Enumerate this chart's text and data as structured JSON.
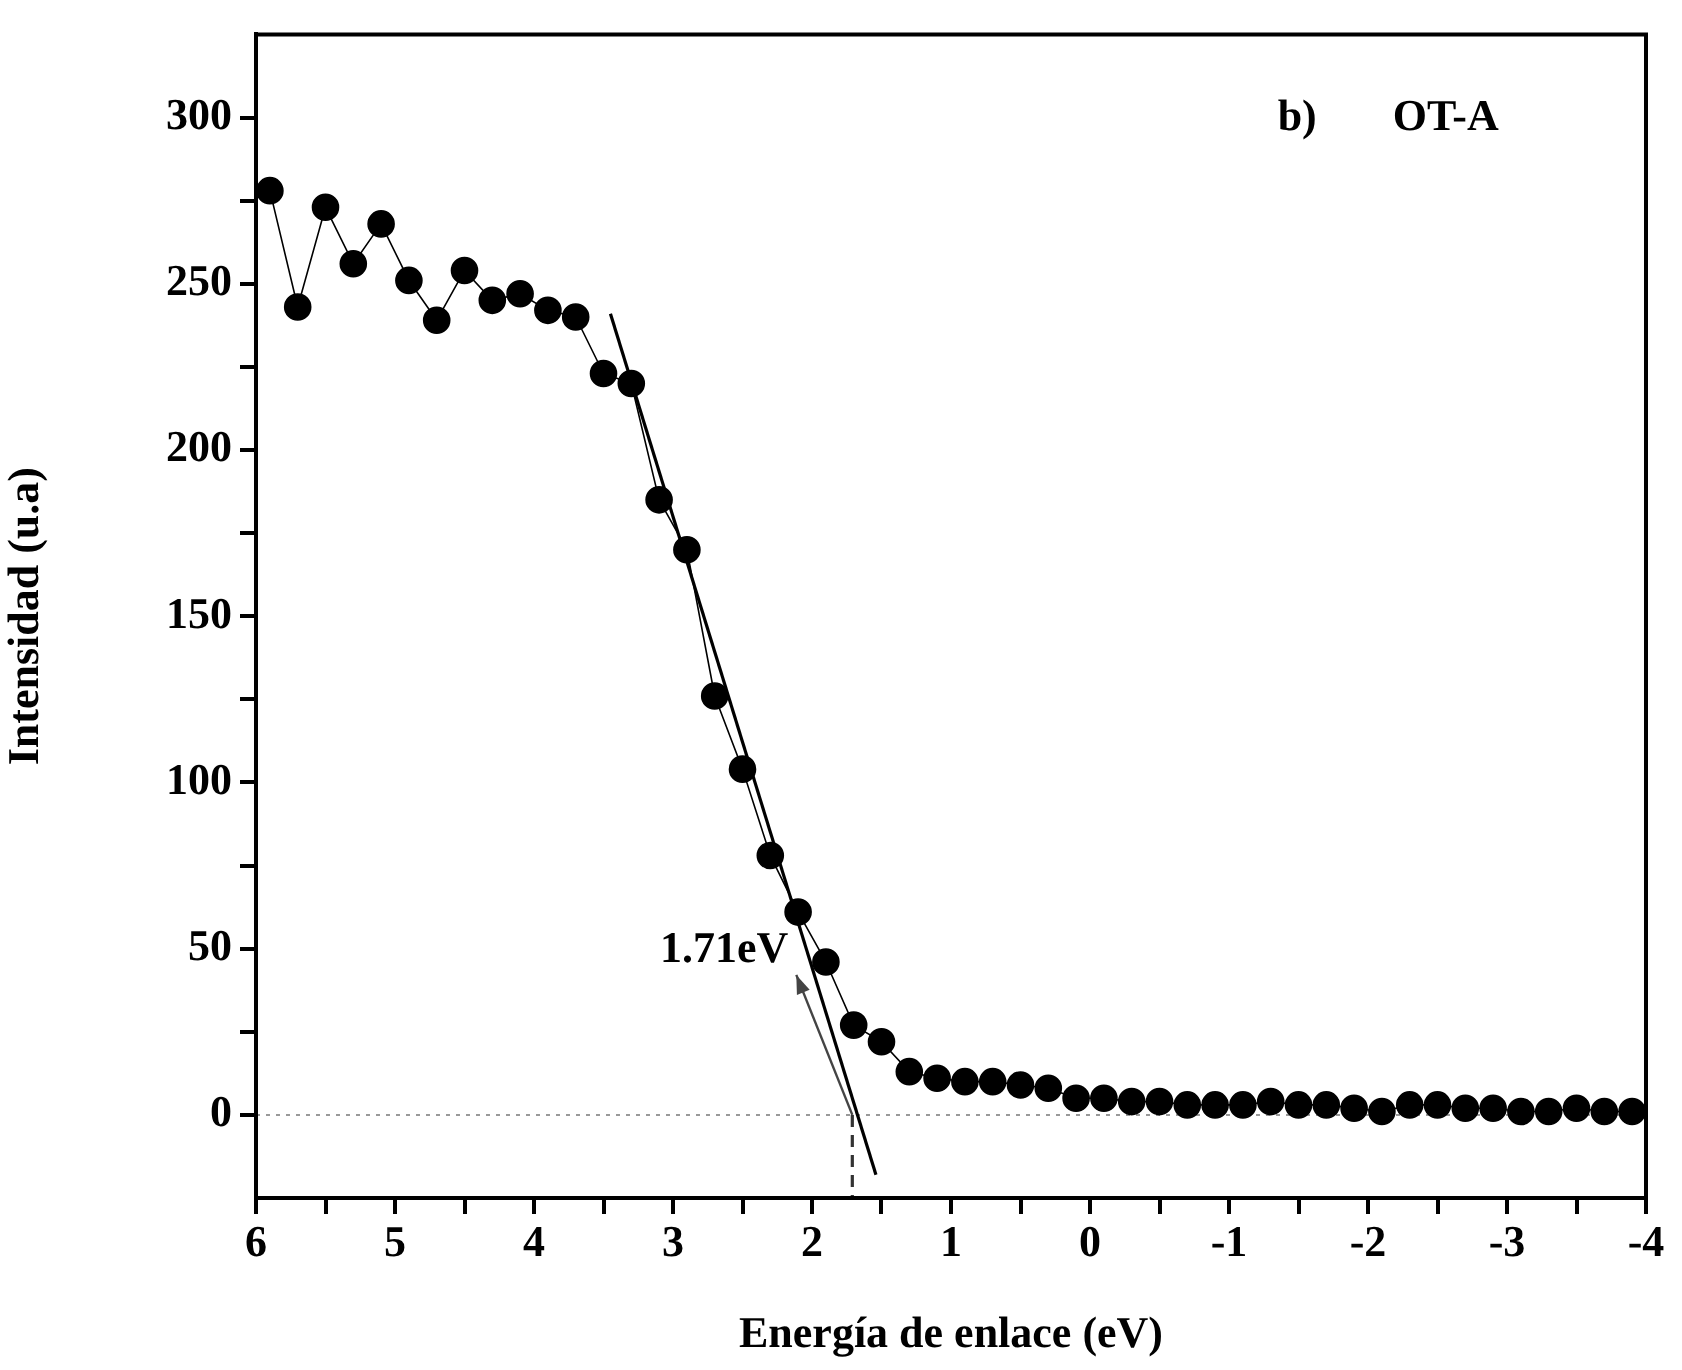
{
  "chart_data": {
    "type": "line",
    "xlabel": "Energía de enlace (eV)",
    "ylabel": "Intensidad (u.a)",
    "xlim": [
      6,
      -4
    ],
    "xticks": [
      6,
      {
        "value": 5.5,
        "label": null
      },
      5,
      {
        "value": 4.5,
        "label": null
      },
      4,
      {
        "value": 3.5,
        "label": null
      },
      3,
      {
        "value": 2.5,
        "label": null
      },
      2,
      {
        "value": 1.5,
        "label": null
      },
      1,
      {
        "value": 0.5,
        "label": null
      },
      0,
      {
        "value": -0.5,
        "label": null
      },
      -1,
      {
        "value": -1.5,
        "label": null
      },
      -2,
      {
        "value": -2.5,
        "label": null
      },
      -3,
      {
        "value": -3.5,
        "label": null
      },
      -4
    ],
    "ylim": [
      -25,
      325
    ],
    "yticks": [
      0,
      {
        "value": 25,
        "label": null
      },
      50,
      {
        "value": 75,
        "label": null
      },
      100,
      {
        "value": 125,
        "label": null
      },
      150,
      {
        "value": 175,
        "label": null
      },
      200,
      {
        "value": 225,
        "label": null
      },
      250,
      {
        "value": 275,
        "label": null
      },
      300
    ],
    "grid": false,
    "legend": false,
    "series": [
      {
        "color": "#000000",
        "marker": "circle",
        "line_style": "solid",
        "x": [
          5.9,
          5.7,
          5.5,
          5.3,
          5.1,
          4.9,
          4.7,
          4.5,
          4.3,
          4.1,
          3.9,
          3.7,
          3.5,
          3.3,
          3.1,
          2.9,
          2.7,
          2.5,
          2.3,
          2.1,
          1.9,
          1.7,
          1.5,
          1.3,
          1.1,
          0.9,
          0.7,
          0.5,
          0.3,
          0.1,
          -0.1,
          -0.3,
          -0.5,
          -0.7,
          -0.9,
          -1.1,
          -1.3,
          -1.5,
          -1.7,
          -1.9,
          -2.1,
          -2.3,
          -2.5,
          -2.7,
          -2.9,
          -3.1,
          -3.3,
          -3.5,
          -3.7,
          -3.9
        ],
        "values": [
          278,
          243,
          273,
          256,
          268,
          251,
          239,
          254,
          245,
          247,
          242,
          240,
          223,
          220,
          185,
          170,
          126,
          104,
          78,
          61,
          46,
          27,
          22,
          13,
          11,
          10,
          10,
          9,
          8,
          5,
          5,
          4,
          4,
          3,
          3,
          3,
          4,
          3,
          3,
          2,
          1,
          3,
          3,
          2,
          2,
          1,
          1,
          2,
          1,
          1
        ]
      },
      {
        "color": "#000000",
        "marker": "none",
        "line_style": "solid",
        "x": [
          3.45,
          1.54
        ],
        "values": [
          241,
          -18
        ]
      },
      {
        "color": "#333333",
        "marker": "none",
        "line_style": "dashed",
        "x": [
          1.71,
          1.71
        ],
        "values": [
          0,
          -25
        ]
      }
    ],
    "ref_lines": [
      {
        "axis": "y",
        "value": 0,
        "color": "#999999",
        "line_style": "dotted"
      }
    ],
    "annotations": [
      {
        "text": "1.71eV",
        "x": 1.71,
        "y": 0
      },
      "b)",
      "OT-A"
    ]
  }
}
